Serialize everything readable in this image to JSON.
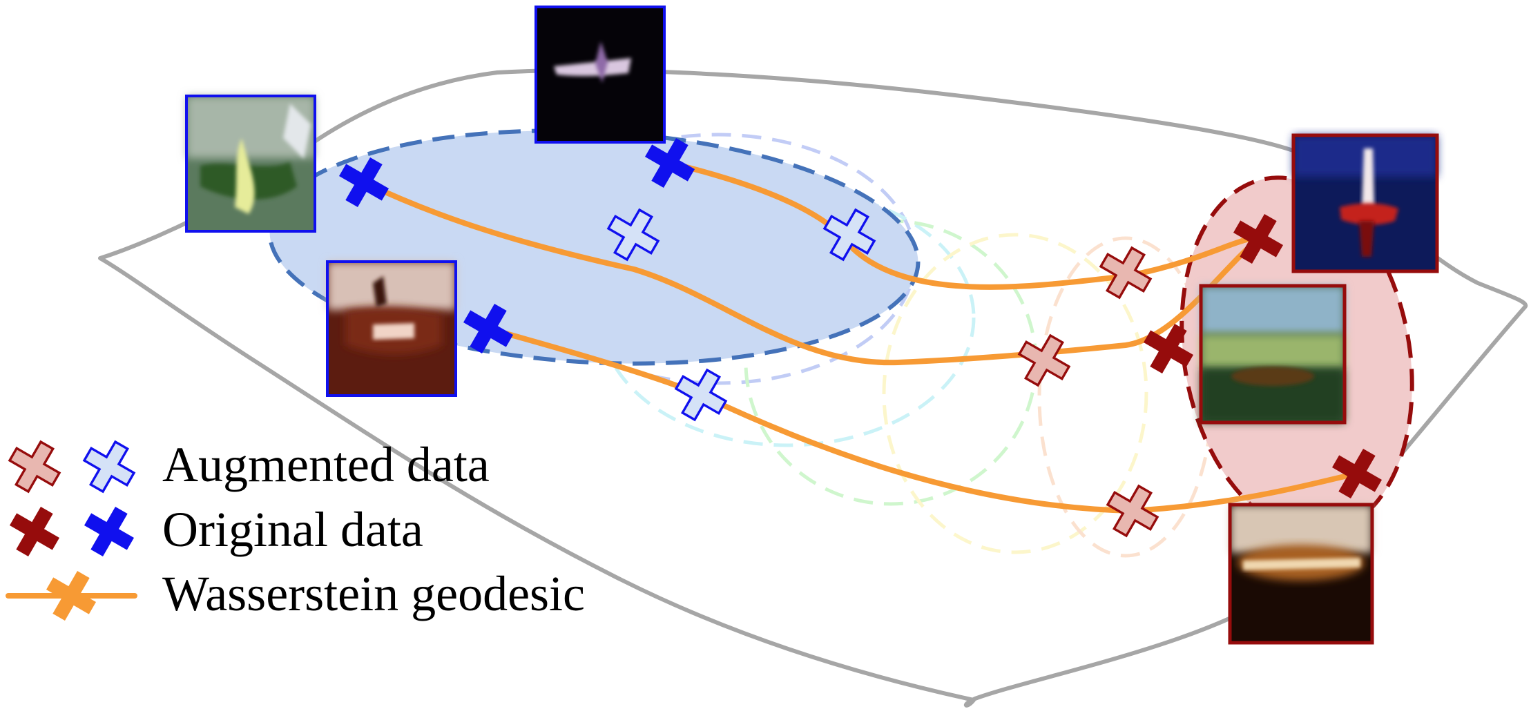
{
  "legend": {
    "augmented_label": "Augmented data",
    "original_label": "Original data",
    "geodesic_label": "Wasserstein geodesic"
  },
  "colors": {
    "manifold_outline": "#a6a6a6",
    "blue_class": "#1010ee",
    "blue_region_fill": "#c9d9f3",
    "blue_region_stroke": "#4472b9",
    "augmented_blue_fill": "#d5e2f7",
    "red_class": "#960c0c",
    "red_region_fill": "#f1cbcb",
    "augmented_red_fill": "#e8b7b0",
    "geodesic": "#f79a34"
  },
  "icons": {
    "augmented_marker": "cross-outline-icon",
    "original_marker": "cross-solid-icon",
    "geodesic_marker": "line-with-cross-icon"
  },
  "thumbnails": [
    {
      "name": "cifar-image-green-airplane",
      "class": "blue"
    },
    {
      "name": "cifar-image-airplane-night",
      "class": "blue"
    },
    {
      "name": "cifar-image-brown-airplane",
      "class": "blue"
    },
    {
      "name": "cifar-image-red-airplane",
      "class": "red"
    },
    {
      "name": "cifar-image-green-blurred",
      "class": "red"
    },
    {
      "name": "cifar-image-brown-blurred",
      "class": "red"
    }
  ]
}
